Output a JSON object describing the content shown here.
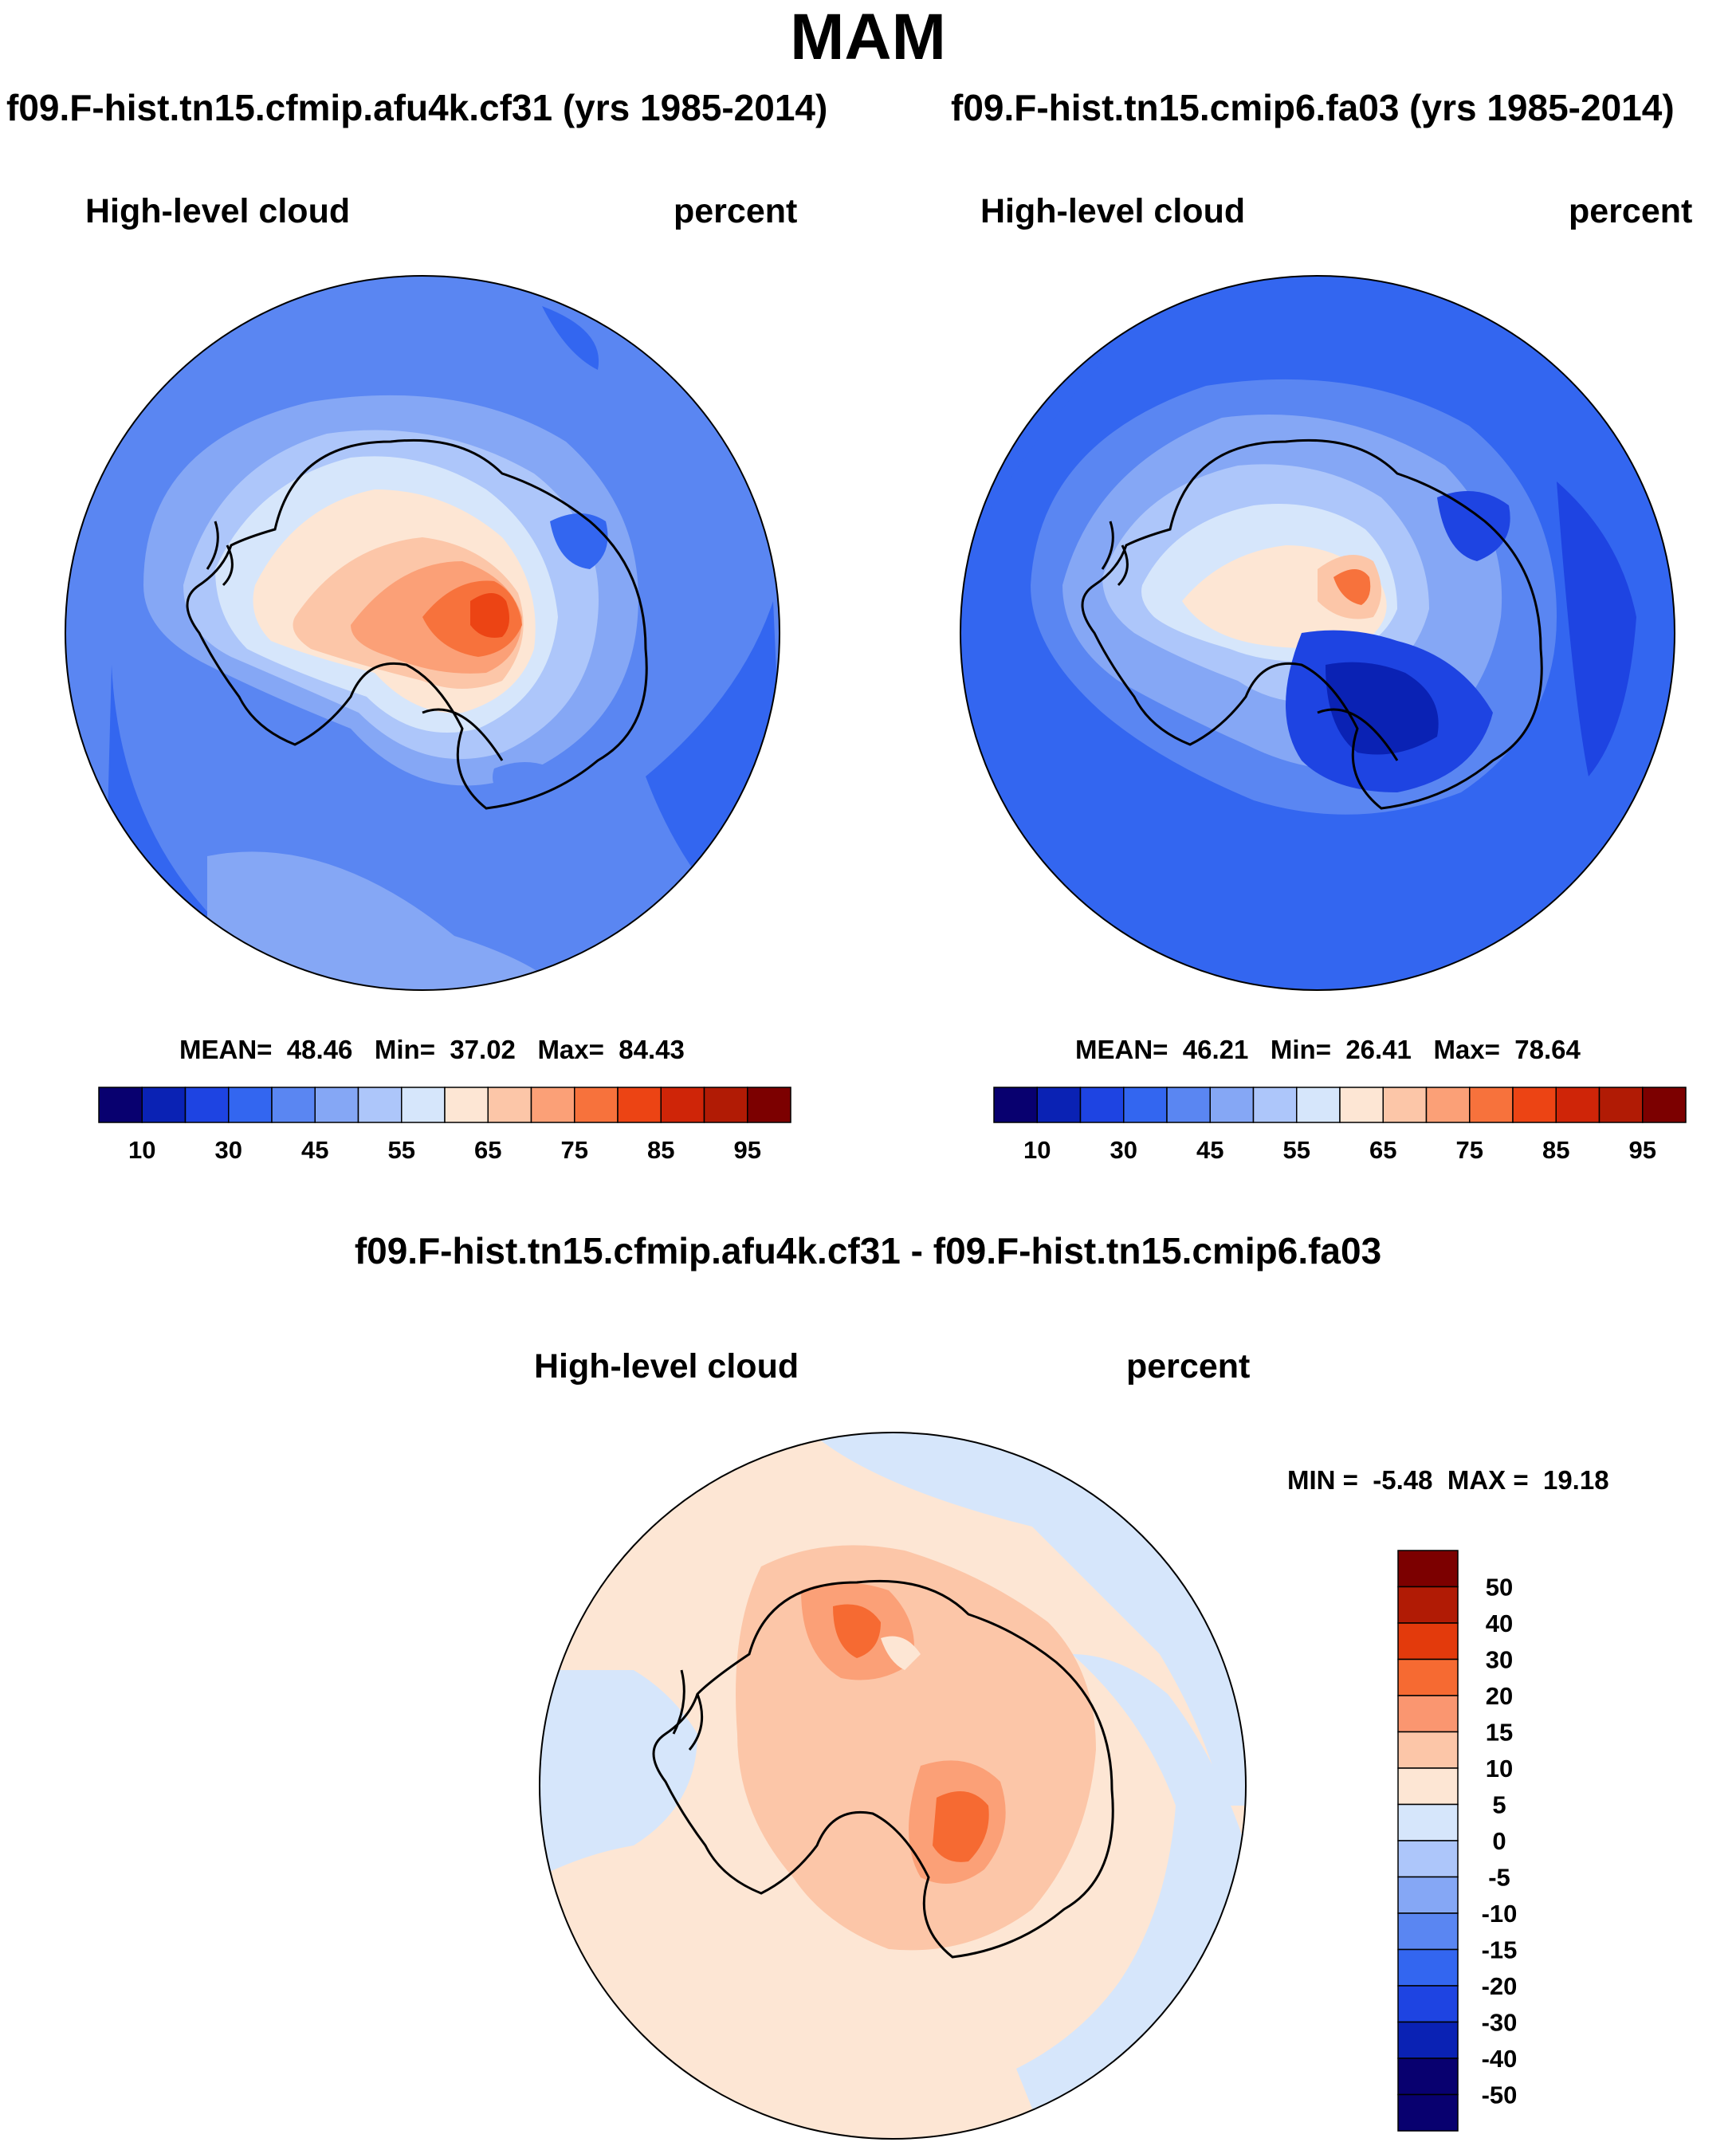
{
  "figure": {
    "season": "MAM",
    "variable": "High-level cloud",
    "units": "percent",
    "case_a": "f09.F-hist.tn15.cfmip.afu4k.cf31",
    "case_b": "f09.F-hist.tn15.cmip6.fa03",
    "panel_titles": {
      "left": "f09.F-hist.tn15.cfmip.afu4k.cf31 (yrs 1985-2014)",
      "right": "f09.F-hist.tn15.cmip6.fa03 (yrs 1985-2014)",
      "diff": "f09.F-hist.tn15.cfmip.afu4k.cf31 - f09.F-hist.tn15.cmip6.fa03"
    }
  },
  "chart_data": [
    {
      "type": "heatmap",
      "projection": "south polar stereographic",
      "title": "f09.F-hist.tn15.cfmip.afu4k.cf31 (yrs 1985-2014)",
      "left_label": "High-level cloud",
      "right_label": "percent",
      "stats": {
        "mean_label": "MEAN=",
        "mean": "48.46",
        "min_label": "Min=",
        "min": "37.02",
        "max_label": "Max=",
        "max": "84.43"
      },
      "colorbar": {
        "orientation": "horizontal",
        "tick_labels": [
          "10",
          "30",
          "45",
          "55",
          "65",
          "75",
          "85",
          "95"
        ]
      }
    },
    {
      "type": "heatmap",
      "projection": "south polar stereographic",
      "title": "f09.F-hist.tn15.cmip6.fa03 (yrs 1985-2014)",
      "left_label": "High-level cloud",
      "right_label": "percent",
      "stats": {
        "mean_label": "MEAN=",
        "mean": "46.21",
        "min_label": "Min=",
        "min": "26.41",
        "max_label": "Max=",
        "max": "78.64"
      },
      "colorbar": {
        "orientation": "horizontal",
        "tick_labels": [
          "10",
          "30",
          "45",
          "55",
          "65",
          "75",
          "85",
          "95"
        ]
      }
    },
    {
      "type": "heatmap",
      "projection": "south polar stereographic",
      "title": "f09.F-hist.tn15.cfmip.afu4k.cf31 - f09.F-hist.tn15.cmip6.fa03",
      "left_label": "High-level cloud",
      "right_label": "percent",
      "stats": {
        "min_label": "MIN =",
        "min": "-5.48",
        "max_label": "MAX =",
        "max": "19.18"
      },
      "colorbar": {
        "orientation": "vertical",
        "tick_labels": [
          "50",
          "40",
          "30",
          "20",
          "15",
          "10",
          "5",
          "0",
          "-5",
          "-10",
          "-15",
          "-20",
          "-30",
          "-40",
          "-50"
        ]
      }
    }
  ],
  "colors": {
    "abs_scale": [
      "#08006f",
      "#0a22b4",
      "#1e44e2",
      "#3366f0",
      "#5a86f2",
      "#85a7f5",
      "#adc6fa",
      "#d6e6fb",
      "#fde6d4",
      "#fcc6a8",
      "#fba077",
      "#f7723c",
      "#ec4414",
      "#cf2508",
      "#b11b05",
      "#7c0000"
    ],
    "diff_scale": [
      "#7c0000",
      "#b11b05",
      "#e33a0c",
      "#f66a32",
      "#fa9670",
      "#fcc6a8",
      "#fde6d4",
      "#d6e6fb",
      "#adc6fa",
      "#85a7f5",
      "#5a86f2",
      "#3366f0",
      "#1e44e2",
      "#0a22b4",
      "#08006f"
    ]
  }
}
